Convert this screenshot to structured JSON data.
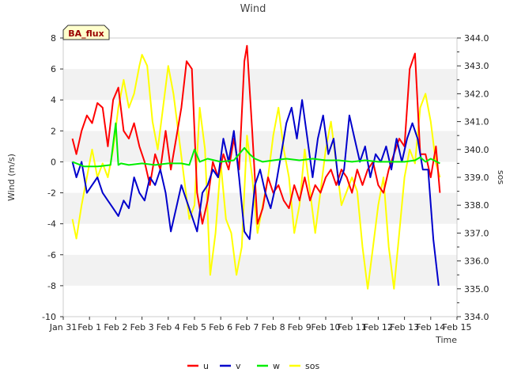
{
  "chart_data": {
    "type": "line",
    "title": "Wind",
    "site_label": "BA_flux",
    "xlabel": "Time",
    "ylabel_left": "Wind (m/s)",
    "ylabel_right": "sos",
    "x_ticks": [
      "Jan 31",
      "Feb 1",
      "Feb 2",
      "Feb 3",
      "Feb 4",
      "Feb 5",
      "Feb 6",
      "Feb 7",
      "Feb 8",
      "Feb 9",
      "Feb 10",
      "Feb 11",
      "Feb 12",
      "Feb 13",
      "Feb 14",
      "Feb 15"
    ],
    "x_range_days": [
      0,
      15
    ],
    "ylim_left": [
      -10,
      8
    ],
    "yticks_left": [
      8,
      6,
      4,
      2,
      0,
      -2,
      -4,
      -6,
      -8,
      -10
    ],
    "ylim_right": [
      334.0,
      344.0
    ],
    "yticks_right": [
      "344.0",
      "343.0",
      "342.0",
      "341.0",
      "340.0",
      "339.0",
      "338.0",
      "337.0",
      "336.0",
      "335.0",
      "334.0"
    ],
    "legend": [
      {
        "name": "u",
        "color": "#ff0000"
      },
      {
        "name": "v",
        "color": "#0000cc"
      },
      {
        "name": "w",
        "color": "#00ee00"
      },
      {
        "name": "sos",
        "color": "#ffff00"
      }
    ],
    "series": [
      {
        "name": "u",
        "axis": "left",
        "color": "#ff0000",
        "x": [
          0.35,
          0.5,
          0.7,
          0.9,
          1.1,
          1.3,
          1.5,
          1.7,
          1.9,
          2.1,
          2.3,
          2.5,
          2.7,
          2.9,
          3.1,
          3.3,
          3.5,
          3.7,
          3.9,
          4.1,
          4.3,
          4.5,
          4.7,
          4.9,
          5.1,
          5.3,
          5.5,
          5.7,
          5.9,
          6.1,
          6.3,
          6.5,
          6.7,
          6.9,
          7.0,
          7.2,
          7.4,
          7.6,
          7.8,
          8.0,
          8.2,
          8.4,
          8.6,
          8.8,
          9.0,
          9.2,
          9.4,
          9.6,
          9.8,
          10.0,
          10.2,
          10.4,
          10.6,
          10.8,
          11.0,
          11.2,
          11.4,
          11.6,
          11.8,
          12.0,
          12.2,
          12.4,
          12.6,
          12.8,
          13.0,
          13.2,
          13.4,
          13.6,
          13.8,
          14.0,
          14.2,
          14.35
        ],
        "values": [
          1.5,
          0.5,
          2.0,
          3.0,
          2.5,
          3.8,
          3.5,
          1.0,
          4.0,
          4.8,
          2.0,
          1.5,
          2.5,
          1.0,
          0.0,
          -1.5,
          0.5,
          -0.5,
          2.0,
          -0.5,
          1.5,
          3.5,
          6.5,
          6.0,
          -2.0,
          -4.0,
          -2.5,
          0.0,
          -1.0,
          0.5,
          -0.5,
          1.5,
          -0.5,
          6.5,
          7.5,
          2.0,
          -4.0,
          -3.0,
          -1.0,
          -2.0,
          -1.5,
          -2.5,
          -3.0,
          -1.5,
          -2.5,
          -1.0,
          -2.5,
          -1.5,
          -2.0,
          -1.0,
          -0.5,
          -1.5,
          -0.5,
          -1.0,
          -2.0,
          -0.5,
          -1.5,
          -0.5,
          0.0,
          -1.5,
          -2.0,
          -0.5,
          0.5,
          1.5,
          1.0,
          6.0,
          7.0,
          0.5,
          0.5,
          -1.0,
          1.0,
          -2.0
        ]
      },
      {
        "name": "v",
        "axis": "left",
        "color": "#0000cc",
        "x": [
          0.35,
          0.5,
          0.7,
          0.9,
          1.1,
          1.3,
          1.5,
          1.7,
          1.9,
          2.1,
          2.3,
          2.5,
          2.7,
          2.9,
          3.1,
          3.3,
          3.5,
          3.7,
          3.9,
          4.1,
          4.3,
          4.5,
          4.7,
          4.9,
          5.1,
          5.3,
          5.5,
          5.7,
          5.9,
          6.1,
          6.3,
          6.5,
          6.7,
          6.9,
          7.1,
          7.3,
          7.5,
          7.7,
          7.9,
          8.1,
          8.3,
          8.5,
          8.7,
          8.9,
          9.1,
          9.3,
          9.5,
          9.7,
          9.9,
          10.1,
          10.3,
          10.5,
          10.7,
          10.9,
          11.1,
          11.3,
          11.5,
          11.7,
          11.9,
          12.1,
          12.3,
          12.5,
          12.7,
          12.9,
          13.1,
          13.3,
          13.5,
          13.7,
          13.9,
          14.1,
          14.3
        ],
        "values": [
          0.0,
          -1.0,
          0.0,
          -2.0,
          -1.5,
          -1.0,
          -2.0,
          -2.5,
          -3.0,
          -3.5,
          -2.5,
          -3.0,
          -1.0,
          -2.0,
          -2.5,
          -1.0,
          -1.5,
          -0.5,
          -2.0,
          -4.5,
          -3.0,
          -1.5,
          -2.5,
          -3.5,
          -4.5,
          -2.0,
          -1.5,
          -0.5,
          -1.0,
          1.5,
          0.0,
          2.0,
          -1.0,
          -4.5,
          -5.0,
          -1.5,
          -0.5,
          -2.0,
          -3.0,
          -1.5,
          0.5,
          2.5,
          3.5,
          1.5,
          4.0,
          1.5,
          -1.0,
          1.5,
          3.0,
          0.5,
          1.5,
          -1.5,
          -0.5,
          3.0,
          1.5,
          0.0,
          1.0,
          -1.0,
          0.5,
          0.0,
          1.0,
          -0.5,
          1.5,
          0.0,
          1.5,
          2.5,
          1.5,
          -0.5,
          -0.5,
          -5.0,
          -8.0
        ]
      },
      {
        "name": "w",
        "axis": "left",
        "color": "#00ee00",
        "x": [
          0.35,
          0.8,
          1.3,
          1.8,
          2.0,
          2.1,
          2.2,
          2.5,
          3.0,
          3.5,
          4.0,
          4.5,
          4.8,
          5.0,
          5.2,
          5.5,
          6.0,
          6.5,
          6.9,
          7.1,
          7.3,
          7.6,
          8.0,
          8.5,
          9.0,
          9.5,
          10.0,
          10.5,
          11.0,
          11.5,
          12.0,
          12.5,
          13.0,
          13.4,
          13.6,
          13.8,
          14.0,
          14.35
        ],
        "values": [
          0.0,
          -0.3,
          -0.3,
          -0.2,
          2.5,
          -0.2,
          -0.1,
          -0.2,
          -0.1,
          -0.2,
          -0.1,
          -0.1,
          -0.2,
          0.8,
          0.0,
          0.2,
          0.0,
          0.1,
          0.9,
          0.5,
          0.2,
          0.0,
          0.1,
          0.2,
          0.1,
          0.2,
          0.1,
          0.1,
          0.0,
          0.1,
          0.0,
          0.0,
          0.0,
          0.1,
          0.3,
          0.0,
          0.2,
          -0.1
        ]
      },
      {
        "name": "sos",
        "axis": "right",
        "color": "#ffff00",
        "x": [
          0.35,
          0.5,
          0.7,
          0.9,
          1.1,
          1.3,
          1.5,
          1.7,
          1.9,
          2.1,
          2.3,
          2.5,
          2.7,
          2.9,
          3.0,
          3.2,
          3.4,
          3.6,
          3.8,
          4.0,
          4.2,
          4.4,
          4.6,
          4.8,
          5.0,
          5.2,
          5.4,
          5.6,
          5.8,
          6.0,
          6.2,
          6.4,
          6.6,
          6.8,
          7.0,
          7.2,
          7.4,
          7.6,
          7.8,
          8.0,
          8.2,
          8.4,
          8.6,
          8.8,
          9.0,
          9.2,
          9.4,
          9.6,
          9.8,
          10.0,
          10.2,
          10.4,
          10.6,
          10.8,
          11.0,
          11.2,
          11.4,
          11.6,
          11.8,
          12.0,
          12.2,
          12.4,
          12.6,
          12.8,
          13.0,
          13.2,
          13.4,
          13.6,
          13.8,
          14.0,
          14.2,
          14.35
        ],
        "values": [
          337.5,
          336.8,
          338.0,
          339.0,
          340.0,
          339.0,
          339.5,
          339.0,
          340.0,
          341.5,
          342.5,
          341.5,
          342.0,
          343.0,
          343.4,
          343.0,
          341.0,
          340.0,
          341.5,
          343.0,
          342.0,
          340.5,
          339.0,
          337.5,
          338.0,
          341.5,
          340.0,
          335.5,
          337.0,
          339.5,
          337.5,
          337.0,
          335.5,
          336.5,
          340.5,
          339.0,
          337.0,
          338.0,
          339.0,
          340.5,
          341.5,
          340.0,
          339.0,
          337.0,
          338.0,
          340.0,
          338.5,
          337.0,
          338.5,
          340.0,
          341.0,
          339.5,
          338.0,
          338.5,
          339.0,
          338.5,
          336.5,
          335.0,
          336.5,
          338.0,
          339.0,
          336.5,
          335.0,
          337.0,
          339.0,
          340.0,
          339.5,
          341.5,
          342.0,
          341.0,
          339.5,
          339.0
        ]
      }
    ]
  }
}
